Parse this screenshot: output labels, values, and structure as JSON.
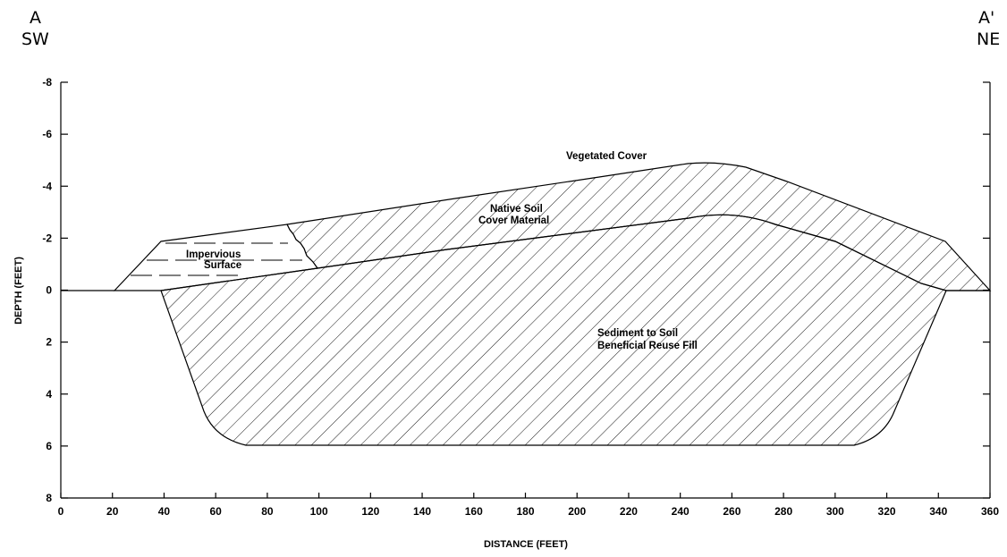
{
  "section": {
    "left_end": {
      "letter": "A",
      "direction": "SW"
    },
    "right_end": {
      "letter": "A'",
      "direction": "NE"
    }
  },
  "axes": {
    "x_title": "DISTANCE (FEET)",
    "y_title": "DEPTH (FEET)",
    "x_ticks": [
      "0",
      "20",
      "40",
      "60",
      "80",
      "100",
      "120",
      "140",
      "160",
      "180",
      "200",
      "220",
      "240",
      "260",
      "280",
      "300",
      "320",
      "340",
      "360"
    ],
    "y_ticks": [
      "-8",
      "-6",
      "-4",
      "-2",
      "0",
      "2",
      "4",
      "6",
      "8"
    ]
  },
  "annotations": {
    "vegetated_cover": "Vegetated Cover",
    "native_soil_1": "Native Soil",
    "native_soil_2": "Cover Material",
    "impervious_1": "Impervious",
    "impervious_2": "Surface",
    "sediment_1": "Sediment to Soil",
    "sediment_2": "Beneficial Reuse Fill"
  },
  "profile": {
    "x_range": [
      0,
      360
    ],
    "depth_range": [
      -8,
      8
    ],
    "ground_surface_depth": 0,
    "top_surface": [
      [
        0,
        0
      ],
      [
        20,
        0
      ],
      [
        38,
        -1.9
      ],
      [
        180,
        -4.3
      ],
      [
        250,
        -4.95
      ],
      [
        265,
        -4.85
      ],
      [
        280,
        -4.5
      ],
      [
        330,
        -2.35
      ],
      [
        340,
        -1.9
      ],
      [
        360,
        0
      ]
    ],
    "fill_top_surface": [
      [
        38,
        0
      ],
      [
        120,
        -1.2
      ],
      [
        240,
        -2.85
      ],
      [
        255,
        -2.95
      ],
      [
        265,
        -2.85
      ],
      [
        300,
        -1.9
      ],
      [
        340,
        0
      ]
    ],
    "fill_bottom": [
      [
        38,
        0
      ],
      [
        55,
        4.7
      ],
      [
        70,
        5.9
      ],
      [
        305,
        5.9
      ],
      [
        320,
        4.9
      ],
      [
        341,
        0
      ]
    ],
    "impervious_zone_x": [
      20,
      100
    ]
  }
}
